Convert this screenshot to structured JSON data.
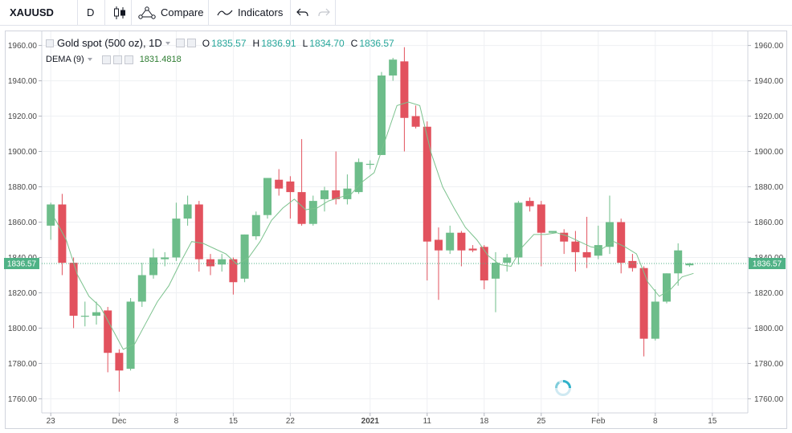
{
  "toolbar": {
    "symbol": "XAUUSD",
    "interval": "D",
    "compare_label": "Compare",
    "indicators_label": "Indicators"
  },
  "legend": {
    "title": "Gold spot (500 oz), 1D",
    "o_label": "O",
    "o_value": "1835.57",
    "h_label": "H",
    "h_value": "1836.91",
    "l_label": "L",
    "l_value": "1834.70",
    "c_label": "C",
    "c_value": "1836.57",
    "indicator_name": "DEMA (9)",
    "indicator_value": "1831.4818"
  },
  "colors": {
    "up": "#6dbd8a",
    "down": "#e2525e",
    "dema": "#7cc28e",
    "price_line": "#4fb286",
    "price_label_bg": "#4fb286"
  },
  "chart_data": {
    "type": "candlestick",
    "ylim": [
      1752,
      1968
    ],
    "y_ticks": [
      "1960.00",
      "1940.00",
      "1920.00",
      "1900.00",
      "1880.00",
      "1860.00",
      "1840.00",
      "1820.00",
      "1800.00",
      "1780.00",
      "1760.00"
    ],
    "x_ticks": [
      "23",
      "Dec",
      "8",
      "15",
      "22",
      "2021",
      "11",
      "18",
      "25",
      "Feb",
      "8",
      "15"
    ],
    "last_price": "1836.57",
    "candles": [
      {
        "o": 1858,
        "h": 1871,
        "l": 1850,
        "c": 1870
      },
      {
        "o": 1870,
        "h": 1876,
        "l": 1830,
        "c": 1837
      },
      {
        "o": 1837,
        "h": 1840,
        "l": 1800,
        "c": 1807
      },
      {
        "o": 1807,
        "h": 1815,
        "l": 1801,
        "c": 1807
      },
      {
        "o": 1807,
        "h": 1815,
        "l": 1802,
        "c": 1809
      },
      {
        "o": 1810,
        "h": 1812,
        "l": 1775,
        "c": 1786
      },
      {
        "o": 1786,
        "h": 1788,
        "l": 1764,
        "c": 1776
      },
      {
        "o": 1777,
        "h": 1817,
        "l": 1776,
        "c": 1815
      },
      {
        "o": 1815,
        "h": 1837,
        "l": 1812,
        "c": 1830
      },
      {
        "o": 1830,
        "h": 1845,
        "l": 1828,
        "c": 1840
      },
      {
        "o": 1839,
        "h": 1843,
        "l": 1835,
        "c": 1840
      },
      {
        "o": 1840,
        "h": 1871,
        "l": 1838,
        "c": 1862
      },
      {
        "o": 1862,
        "h": 1875,
        "l": 1858,
        "c": 1870
      },
      {
        "o": 1870,
        "h": 1872,
        "l": 1832,
        "c": 1839
      },
      {
        "o": 1839,
        "h": 1842,
        "l": 1830,
        "c": 1835
      },
      {
        "o": 1836,
        "h": 1842,
        "l": 1832,
        "c": 1839
      },
      {
        "o": 1839,
        "h": 1840,
        "l": 1819,
        "c": 1826
      },
      {
        "o": 1828,
        "h": 1853,
        "l": 1826,
        "c": 1853
      },
      {
        "o": 1852,
        "h": 1866,
        "l": 1850,
        "c": 1864
      },
      {
        "o": 1864,
        "h": 1885,
        "l": 1862,
        "c": 1885
      },
      {
        "o": 1884,
        "h": 1890,
        "l": 1875,
        "c": 1879
      },
      {
        "o": 1883,
        "h": 1886,
        "l": 1862,
        "c": 1877
      },
      {
        "o": 1877,
        "h": 1907,
        "l": 1858,
        "c": 1859
      },
      {
        "o": 1859,
        "h": 1875,
        "l": 1858,
        "c": 1872
      },
      {
        "o": 1873,
        "h": 1880,
        "l": 1866,
        "c": 1878
      },
      {
        "o": 1878,
        "h": 1900,
        "l": 1870,
        "c": 1873
      },
      {
        "o": 1873,
        "h": 1887,
        "l": 1870,
        "c": 1879
      },
      {
        "o": 1877,
        "h": 1896,
        "l": 1876,
        "c": 1894
      },
      {
        "o": 1893,
        "h": 1895,
        "l": 1890,
        "c": 1893
      },
      {
        "o": 1898,
        "h": 1945,
        "l": 1898,
        "c": 1943
      },
      {
        "o": 1943,
        "h": 1953,
        "l": 1940,
        "c": 1952
      },
      {
        "o": 1951,
        "h": 1959,
        "l": 1900,
        "c": 1919
      },
      {
        "o": 1920,
        "h": 1926,
        "l": 1913,
        "c": 1914
      },
      {
        "o": 1914,
        "h": 1917,
        "l": 1827,
        "c": 1849
      },
      {
        "o": 1850,
        "h": 1857,
        "l": 1816,
        "c": 1844
      },
      {
        "o": 1844,
        "h": 1858,
        "l": 1842,
        "c": 1854
      },
      {
        "o": 1854,
        "h": 1855,
        "l": 1835,
        "c": 1844
      },
      {
        "o": 1845,
        "h": 1847,
        "l": 1843,
        "c": 1844
      },
      {
        "o": 1846,
        "h": 1847,
        "l": 1822,
        "c": 1827
      },
      {
        "o": 1828,
        "h": 1843,
        "l": 1809,
        "c": 1837
      },
      {
        "o": 1837,
        "h": 1842,
        "l": 1832,
        "c": 1840
      },
      {
        "o": 1840,
        "h": 1872,
        "l": 1836,
        "c": 1871
      },
      {
        "o": 1872,
        "h": 1874,
        "l": 1866,
        "c": 1869
      },
      {
        "o": 1870,
        "h": 1872,
        "l": 1835,
        "c": 1854
      },
      {
        "o": 1854,
        "h": 1855,
        "l": 1854,
        "c": 1855
      },
      {
        "o": 1854,
        "h": 1856,
        "l": 1842,
        "c": 1849
      },
      {
        "o": 1849,
        "h": 1855,
        "l": 1832,
        "c": 1843
      },
      {
        "o": 1843,
        "h": 1863,
        "l": 1834,
        "c": 1840
      },
      {
        "o": 1841,
        "h": 1858,
        "l": 1839,
        "c": 1847
      },
      {
        "o": 1846,
        "h": 1875,
        "l": 1842,
        "c": 1860
      },
      {
        "o": 1860,
        "h": 1862,
        "l": 1831,
        "c": 1837
      },
      {
        "o": 1838,
        "h": 1842,
        "l": 1832,
        "c": 1834
      },
      {
        "o": 1834,
        "h": 1835,
        "l": 1784,
        "c": 1794
      },
      {
        "o": 1794,
        "h": 1822,
        "l": 1793,
        "c": 1815
      },
      {
        "o": 1815,
        "h": 1831,
        "l": 1814,
        "c": 1831
      },
      {
        "o": 1831,
        "h": 1848,
        "l": 1824,
        "c": 1844
      },
      {
        "o": 1835.57,
        "h": 1836.91,
        "l": 1834.7,
        "c": 1836.57
      }
    ],
    "dema": [
      1862,
      1850,
      1830,
      1818,
      1812,
      1800,
      1788,
      1791,
      1803,
      1815,
      1824,
      1837,
      1849,
      1848,
      1845,
      1842,
      1836,
      1840,
      1849,
      1861,
      1868,
      1873,
      1867,
      1868,
      1872,
      1874,
      1876,
      1883,
      1888,
      1907,
      1926,
      1928,
      1926,
      1899,
      1880,
      1868,
      1857,
      1850,
      1841,
      1836,
      1835,
      1846,
      1853,
      1853,
      1854,
      1852,
      1849,
      1846,
      1845,
      1849,
      1846,
      1842,
      1826,
      1818,
      1822,
      1829,
      1831
    ]
  }
}
